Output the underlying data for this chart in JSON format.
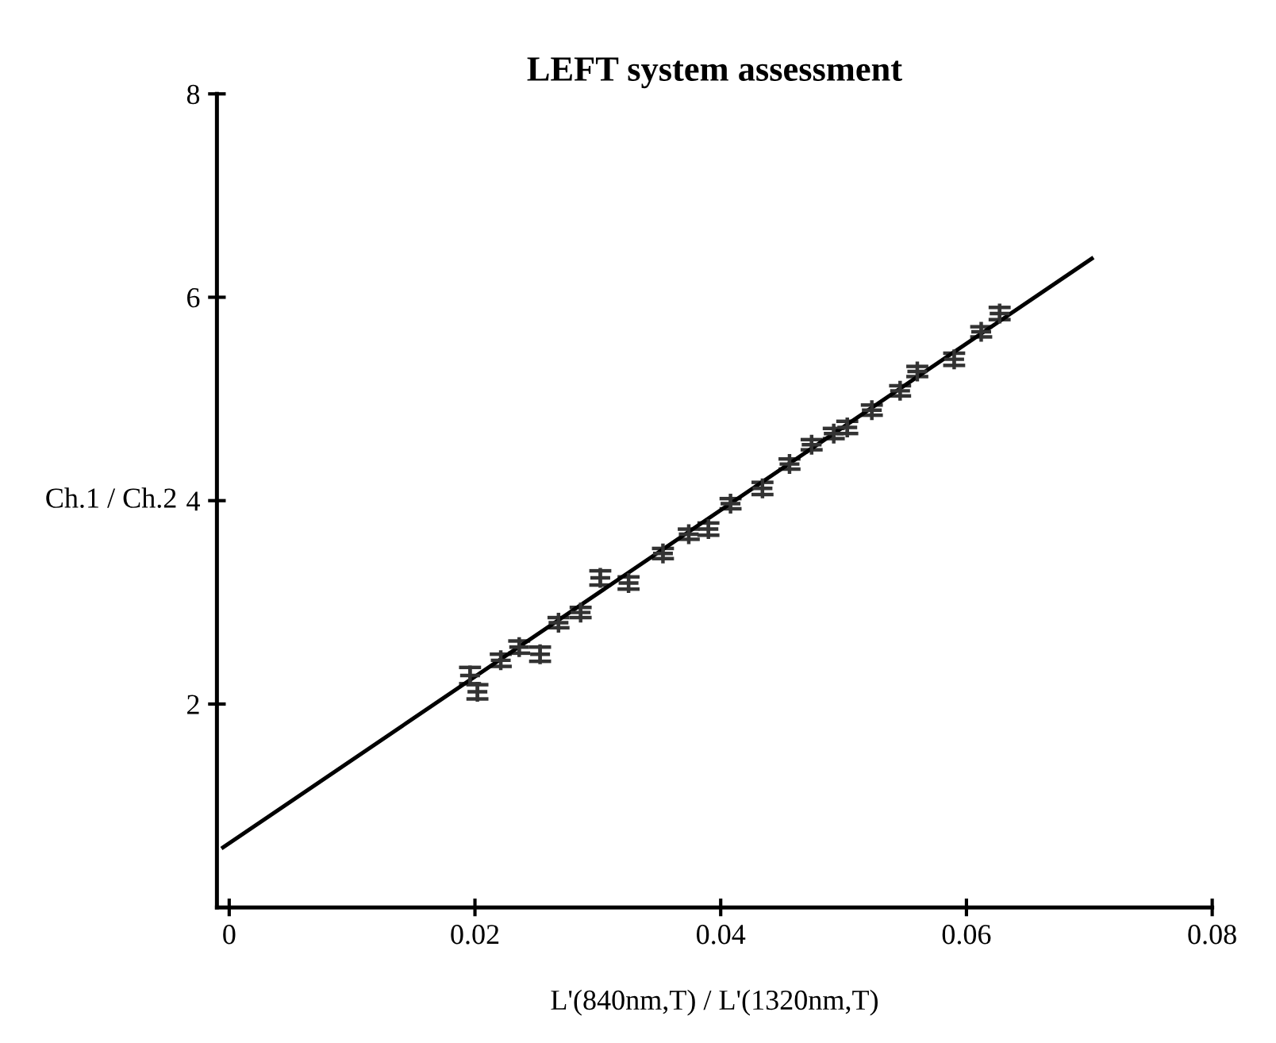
{
  "chart_data": {
    "type": "scatter",
    "title": "LEFT system assessment",
    "xlabel": "L'(840nm,T) / L'(1320nm,T)",
    "ylabel": "Ch.1 / Ch.2",
    "xlim": [
      -0.001,
      0.08
    ],
    "ylim": [
      0,
      8
    ],
    "xticks": [
      0,
      0.02,
      0.04,
      0.06,
      0.08
    ],
    "yticks": [
      2,
      4,
      6,
      8
    ],
    "grid": false,
    "legend": false,
    "marker": "cross",
    "series": [
      {
        "color": "#333333",
        "x": [
          0.0196,
          0.0202,
          0.0221,
          0.0236,
          0.0253,
          0.0268,
          0.0286,
          0.0302,
          0.0325,
          0.0353,
          0.0374,
          0.039,
          0.0408,
          0.0434,
          0.0456,
          0.0474,
          0.0492,
          0.0503,
          0.0523,
          0.0546,
          0.056,
          0.059,
          0.0612,
          0.0627
        ],
        "values": [
          2.28,
          2.12,
          2.43,
          2.56,
          2.49,
          2.8,
          2.9,
          3.24,
          3.19,
          3.48,
          3.67,
          3.72,
          3.97,
          4.12,
          4.36,
          4.55,
          4.66,
          4.72,
          4.89,
          5.08,
          5.27,
          5.39,
          5.66,
          5.84
        ],
        "errors": [
          0.08,
          0.07,
          0.06,
          0.06,
          0.07,
          0.05,
          0.05,
          0.07,
          0.06,
          0.05,
          0.05,
          0.06,
          0.05,
          0.06,
          0.05,
          0.05,
          0.05,
          0.06,
          0.05,
          0.05,
          0.05,
          0.06,
          0.05,
          0.06
        ]
      },
      {
        "type": "line",
        "marker": "none",
        "color": "#000000",
        "x": [
          -0.0005,
          0.0702
        ],
        "values": [
          0.59,
          6.38
        ]
      }
    ]
  }
}
